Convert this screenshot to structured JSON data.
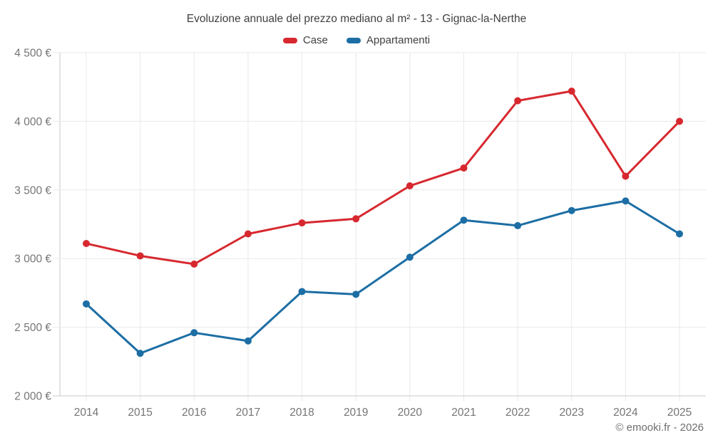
{
  "chart_data": {
    "type": "line",
    "title": "Evoluzione annuale del prezzo mediano al m² - 13 - Gignac-la-Nerthe",
    "categories": [
      "2014",
      "2015",
      "2016",
      "2017",
      "2018",
      "2019",
      "2020",
      "2021",
      "2022",
      "2023",
      "2024",
      "2025"
    ],
    "series": [
      {
        "name": "Case",
        "color": "#d7282f",
        "values": [
          3110,
          3020,
          2960,
          3180,
          3260,
          3290,
          3530,
          3660,
          4150,
          4220,
          3600,
          4000
        ]
      },
      {
        "name": "Appartamenti",
        "color": "#1c6ea4",
        "values": [
          2670,
          2310,
          2460,
          2400,
          2760,
          2740,
          3010,
          3280,
          3240,
          3350,
          3420,
          3180
        ]
      }
    ],
    "xlabel": "",
    "ylabel": "",
    "ylim": [
      2000,
      4500
    ],
    "yticks": [
      2000,
      2500,
      3000,
      3500,
      4000,
      4500
    ],
    "ytick_labels": [
      "2 000 €",
      "2 500 €",
      "3 000 €",
      "3 500 €",
      "4 000 €",
      "4 500 €"
    ],
    "grid": true,
    "legend_position": "top"
  },
  "attribution": "© emooki.fr - 2026",
  "theme": {
    "grid": "#e9e9e9",
    "axis": "#c9c9c9",
    "title_text": "#404040",
    "tick_text": "#757575",
    "attribution_text": "#6e6e6e"
  }
}
